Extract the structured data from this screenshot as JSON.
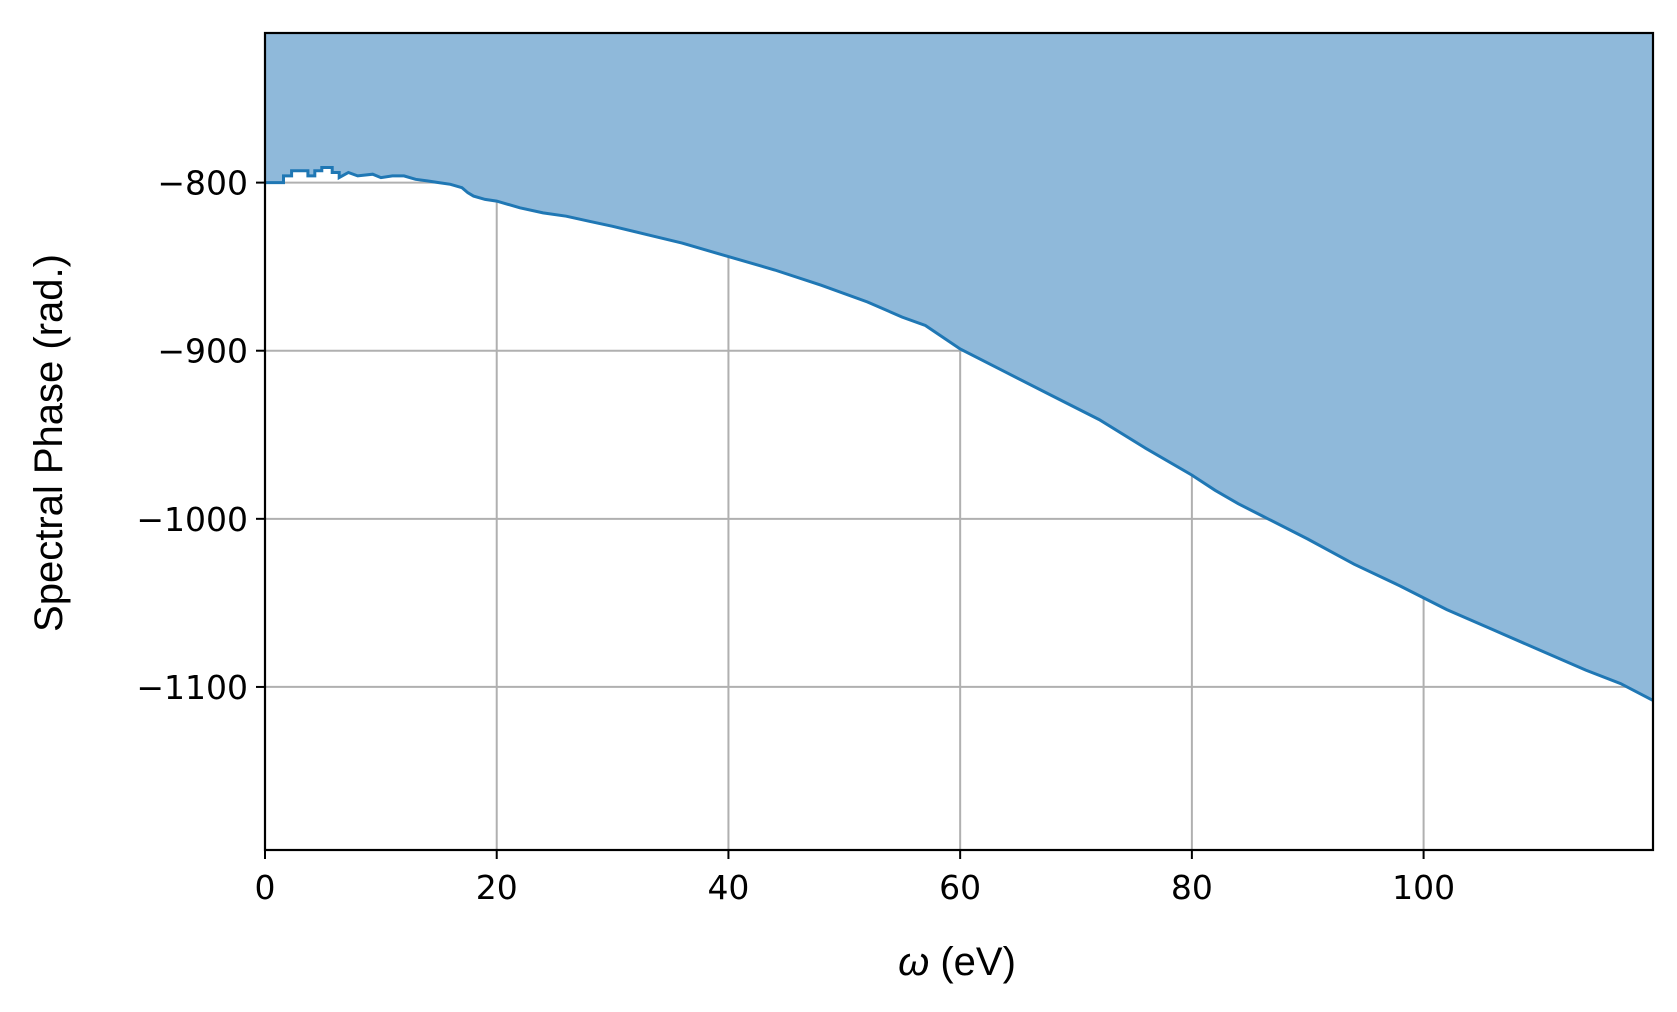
{
  "chart_data": {
    "type": "area",
    "xlabel_symbol": "ω",
    "xlabel_unit": "(eV)",
    "ylabel": "Spectral Phase (rad.)",
    "xlim": [
      0,
      119.8
    ],
    "ylim": [
      -1197,
      -711
    ],
    "xticks": [
      0,
      20,
      40,
      60,
      80,
      100
    ],
    "xtick_labels": [
      "0",
      "20",
      "40",
      "60",
      "80",
      "100"
    ],
    "yticks": [
      -800,
      -900,
      -1000,
      -1100
    ],
    "ytick_labels": [
      "−800",
      "−900",
      "−1000",
      "−1100"
    ],
    "grid": true,
    "fill": "above",
    "colors": {
      "line": "#1f77b4",
      "fill": "#8fb9da",
      "grid": "#b0b0b0",
      "axis": "#000000"
    },
    "series": [
      {
        "x": [
          0,
          1.6,
          1.6,
          2.3,
          2.3,
          3.7,
          3.7,
          4.3,
          4.3,
          4.9,
          4.9,
          5.8,
          5.8,
          6.4,
          6.4,
          7.2,
          8,
          9.3,
          10,
          11,
          12,
          13,
          14,
          15,
          16,
          17,
          17.5,
          18,
          19,
          20,
          22,
          24,
          26,
          28,
          30,
          33,
          36,
          40,
          44,
          48,
          52,
          55,
          57,
          60,
          64,
          68,
          72,
          76,
          80,
          82,
          84,
          86,
          90,
          94,
          98,
          102,
          106,
          110,
          114,
          117,
          119.8
        ],
        "y": [
          -800,
          -800,
          -796,
          -796,
          -793,
          -793,
          -796,
          -796,
          -793,
          -793,
          -791,
          -791,
          -794,
          -794,
          -797,
          -794,
          -796,
          -795,
          -797,
          -796,
          -796,
          -798,
          -799,
          -800,
          -801,
          -803,
          -806,
          -808,
          -810,
          -811,
          -815,
          -818,
          -820,
          -823,
          -826,
          -831,
          -836,
          -844,
          -852,
          -861,
          -871,
          -880,
          -885,
          -899,
          -913,
          -927,
          -941,
          -958,
          -974,
          -983,
          -991,
          -998,
          -1012,
          -1027,
          -1040,
          -1054,
          -1066,
          -1078,
          -1090,
          -1098,
          -1108
        ]
      }
    ]
  }
}
